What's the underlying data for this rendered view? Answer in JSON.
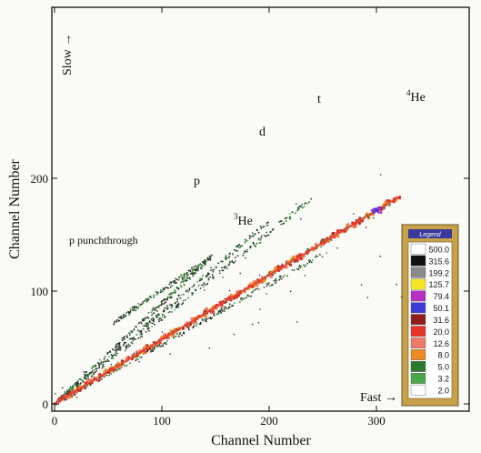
{
  "chart_data": {
    "type": "scatter",
    "title": "",
    "xlabel": "Channel Number",
    "ylabel": "Channel Number",
    "xlim": [
      -10,
      385
    ],
    "ylim": [
      -5,
      250
    ],
    "xticks": [
      0,
      100,
      200,
      300
    ],
    "yticks": [
      0,
      100,
      200
    ],
    "grid": false,
    "series": [
      {
        "name": "p",
        "x_start": 0,
        "y_start": 0,
        "x_end": 148,
        "y_end": 132
      },
      {
        "name": "p punchthrough",
        "x_start": 55,
        "y_start": 72,
        "x_end": 146,
        "y_end": 130
      },
      {
        "name": "d",
        "x_start": 0,
        "y_start": 0,
        "x_end": 200,
        "y_end": 162
      },
      {
        "name": "t",
        "x_start": 0,
        "y_start": 0,
        "x_end": 240,
        "y_end": 182
      },
      {
        "name": "3He",
        "x_start": 0,
        "y_start": 0,
        "x_end": 255,
        "y_end": 135
      },
      {
        "name": "4He",
        "x_start": 0,
        "y_start": 0,
        "x_end": 322,
        "y_end": 184
      }
    ],
    "annotations": {
      "p_punchthrough": "p punchthrough",
      "p": "p",
      "d": "d",
      "t": "t",
      "he3_sup": "3",
      "he3_base": "He",
      "he4_sup": "4",
      "he4_base": "He",
      "slow": "Slow →",
      "fast": "Fast →"
    },
    "legend": {
      "title": "Legend",
      "placement": "bottom-right",
      "entries": [
        {
          "label": "500.0",
          "color": "#ffffff"
        },
        {
          "label": "315.6",
          "color": "#101010"
        },
        {
          "label": "199.2",
          "color": "#8a8a8a"
        },
        {
          "label": "125.7",
          "color": "#f5e628"
        },
        {
          "label": "79.4",
          "color": "#b52fc0"
        },
        {
          "label": "50.1",
          "color": "#3d3bd6"
        },
        {
          "label": "31.6",
          "color": "#8e1d1d"
        },
        {
          "label": "20.0",
          "color": "#e6332a"
        },
        {
          "label": "12.6",
          "color": "#f07a6a"
        },
        {
          "label": "8.0",
          "color": "#ee8a22"
        },
        {
          "label": "5.0",
          "color": "#2c7a2c"
        },
        {
          "label": "3.2",
          "color": "#4aa84a"
        },
        {
          "label": "2.0",
          "color": "#ffffff"
        }
      ]
    }
  }
}
